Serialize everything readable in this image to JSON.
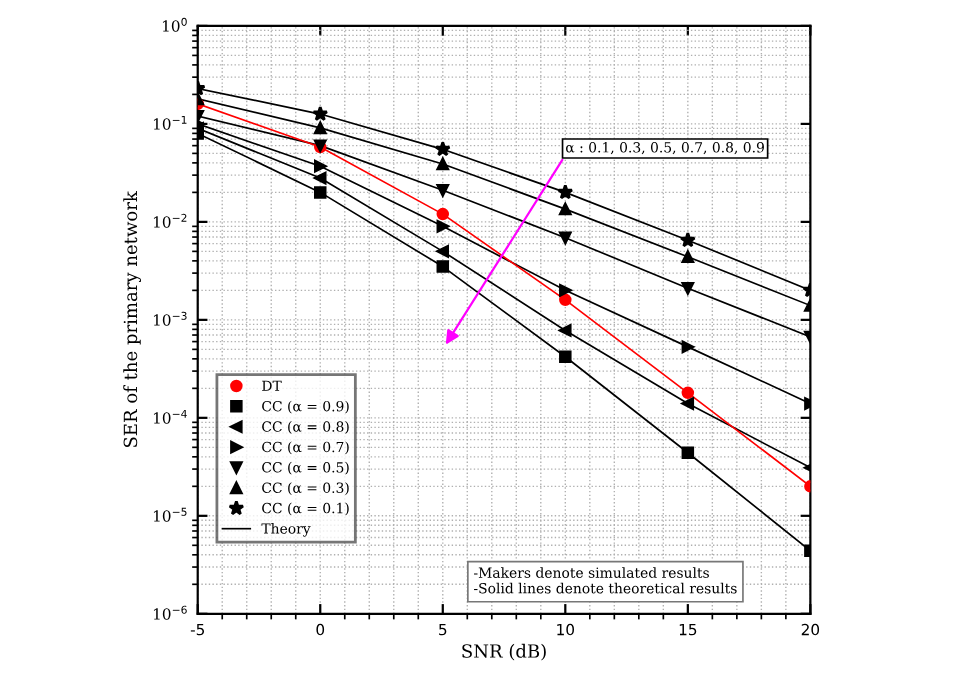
{
  "chart_data": {
    "type": "scatter",
    "xlabel": "SNR (dB)",
    "ylabel": "SER of the primary network",
    "x": [
      -5,
      0,
      5,
      10,
      15,
      20
    ],
    "series": [
      {
        "name": "DT",
        "marker": "circle",
        "color": "#ff0000",
        "values": [
          0.16,
          0.058,
          0.012,
          0.0016,
          0.00018,
          2e-05
        ]
      },
      {
        "name": "CC (α = 0.9)",
        "marker": "square",
        "color": "#000000",
        "values": [
          0.08,
          0.02,
          0.0035,
          0.00042,
          4.4e-05,
          4.4e-06
        ]
      },
      {
        "name": "CC (α = 0.8)",
        "marker": "triangle_left",
        "color": "#000000",
        "values": [
          0.09,
          0.028,
          0.005,
          0.00078,
          0.00014,
          3.1e-05
        ]
      },
      {
        "name": "CC (α = 0.7)",
        "marker": "triangle_right",
        "color": "#000000",
        "values": [
          0.1,
          0.037,
          0.009,
          0.002,
          0.00053,
          0.00014
        ]
      },
      {
        "name": "CC (α = 0.5)",
        "marker": "triangle_down",
        "color": "#000000",
        "values": [
          0.12,
          0.06,
          0.021,
          0.0069,
          0.0021,
          0.00067
        ]
      },
      {
        "name": "CC (α = 0.3)",
        "marker": "triangle",
        "color": "#000000",
        "values": [
          0.18,
          0.091,
          0.039,
          0.0135,
          0.0044,
          0.0014
        ]
      },
      {
        "name": "CC (α = 0.1)",
        "marker": "star",
        "color": "#000000",
        "values": [
          0.23,
          0.126,
          0.055,
          0.02,
          0.0065,
          0.002
        ]
      },
      {
        "name": "Theory",
        "type": "line",
        "color": "#000000",
        "values": [
          0.08,
          0.02,
          0.0035,
          0.00042,
          4.4e-05,
          4.4e-06
        ]
      },
      {
        "type": "line",
        "color": "#000000",
        "values": [
          0.09,
          0.028,
          0.005,
          0.00078,
          0.00014,
          3.1e-05
        ]
      },
      {
        "type": "line",
        "color": "#000000",
        "values": [
          0.1,
          0.037,
          0.009,
          0.002,
          0.00053,
          0.00014
        ]
      },
      {
        "type": "line",
        "color": "#000000",
        "values": [
          0.12,
          0.06,
          0.021,
          0.0069,
          0.0021,
          0.00067
        ]
      },
      {
        "type": "line",
        "color": "#000000",
        "values": [
          0.18,
          0.091,
          0.039,
          0.0135,
          0.0044,
          0.0014
        ]
      },
      {
        "type": "line",
        "color": "#000000",
        "values": [
          0.23,
          0.126,
          0.055,
          0.02,
          0.0065,
          0.002
        ]
      },
      {
        "type": "line",
        "color": "#ff0000",
        "values": [
          0.16,
          0.058,
          0.012,
          0.0016,
          0.00018,
          2e-05
        ]
      }
    ],
    "log": "y",
    "xlim": [
      -5,
      20
    ],
    "xticks": [
      -5,
      0,
      5,
      10,
      15,
      20
    ],
    "ylim": [
      1e-06,
      1
    ],
    "yticks": [
      {
        "value": 1e-06,
        "label": "10$^{−6}$"
      },
      {
        "value": 1e-05,
        "label": "10$^{−5}$"
      },
      {
        "value": 0.0001,
        "label": "10$^{−4}$"
      },
      {
        "value": 0.001,
        "label": "10$^{−3}$"
      },
      {
        "value": 0.01,
        "label": "10$^{−2}$"
      },
      {
        "value": 0.1,
        "label": "10$^{−1}$"
      },
      {
        "value": 1,
        "label": "10$^{0}$"
      }
    ],
    "grid": true,
    "legend": "bottom left",
    "annotations": [
      "α : 0.1, 0.3, 0.5, 0.7, 0.8, 0.9",
      "-Makers denote simulated results\n-Solid lines denote theoretical results"
    ]
  }
}
